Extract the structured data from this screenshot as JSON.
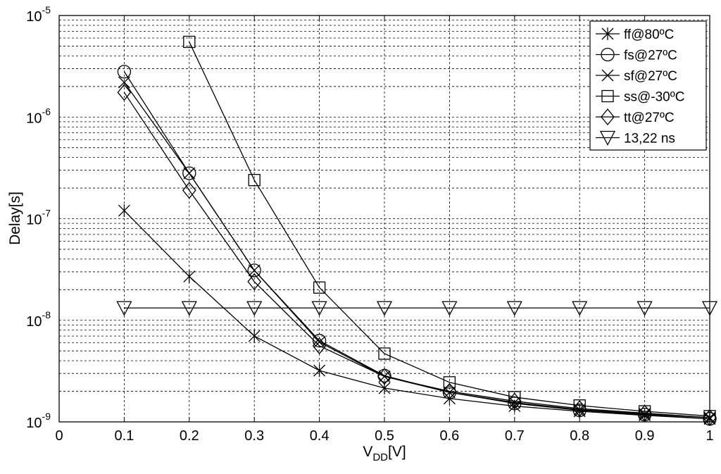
{
  "chart_data": {
    "type": "line",
    "title": "",
    "xlabel_main": "V",
    "xlabel_sub": "DD",
    "xlabel_unit": "[V]",
    "ylabel": "Delay[s]",
    "xlim": [
      0,
      1
    ],
    "ylim": [
      1e-09,
      1e-05
    ],
    "yscale": "log",
    "grid": true,
    "legend_position": "top-right",
    "x_ticks": [
      "0",
      "0.1",
      "0.2",
      "0.3",
      "0.4",
      "0.5",
      "0.6",
      "0.7",
      "0.8",
      "0.9",
      "1"
    ],
    "y_ticks": [
      {
        "base": "10",
        "exp": "-9"
      },
      {
        "base": "10",
        "exp": "-8"
      },
      {
        "base": "10",
        "exp": "-7"
      },
      {
        "base": "10",
        "exp": "-6"
      },
      {
        "base": "10",
        "exp": "-5"
      }
    ],
    "series": [
      {
        "name": "ff@80ºC",
        "marker": "asterisk",
        "x": [
          0.1,
          0.2,
          0.3,
          0.4,
          0.5,
          0.6,
          0.7,
          0.8,
          0.9,
          1.0
        ],
        "y": [
          1.2e-07,
          2.7e-08,
          7e-09,
          3.2e-09,
          2.15e-09,
          1.7e-09,
          1.43e-09,
          1.27e-09,
          1.16e-09,
          1.07e-09
        ]
      },
      {
        "name": "fs@27ºC",
        "marker": "circle",
        "x": [
          0.1,
          0.2,
          0.3,
          0.4,
          0.5,
          0.6,
          0.7,
          0.8,
          0.9,
          1.0
        ],
        "y": [
          2.8e-06,
          2.8e-07,
          3.1e-08,
          6.3e-09,
          2.85e-09,
          1.95e-09,
          1.52e-09,
          1.3e-09,
          1.18e-09,
          1.07e-09
        ]
      },
      {
        "name": "sf@27ºC",
        "marker": "x",
        "x": [
          0.1,
          0.2,
          0.3,
          0.4,
          0.5,
          0.6,
          0.7,
          0.8,
          0.9,
          1.0
        ],
        "y": [
          2.2e-06,
          2.8e-07,
          3.1e-08,
          6.1e-09,
          2.8e-09,
          1.95e-09,
          1.55e-09,
          1.32e-09,
          1.2e-09,
          1.1e-09
        ]
      },
      {
        "name": "ss@-30ºC",
        "marker": "square",
        "x": [
          0.2,
          0.3,
          0.4,
          0.5,
          0.6,
          0.7,
          0.8,
          0.9,
          1.0
        ],
        "y": [
          5.5e-06,
          2.4e-07,
          2.1e-08,
          4.7e-09,
          2.45e-09,
          1.75e-09,
          1.45e-09,
          1.27e-09,
          1.14e-09
        ]
      },
      {
        "name": "tt@27ºC",
        "marker": "diamond",
        "x": [
          0.1,
          0.2,
          0.3,
          0.4,
          0.5,
          0.6,
          0.7,
          0.8,
          0.9,
          1.0
        ],
        "y": [
          1.75e-06,
          1.9e-07,
          2.4e-08,
          5.6e-09,
          2.8e-09,
          2e-09,
          1.6e-09,
          1.35e-09,
          1.22e-09,
          1.1e-09
        ]
      },
      {
        "name": "13,22 ns",
        "marker": "triangle-down",
        "x": [
          0.1,
          0.2,
          0.3,
          0.4,
          0.5,
          0.6,
          0.7,
          0.8,
          0.9,
          1.0
        ],
        "y": [
          1.322e-08,
          1.322e-08,
          1.322e-08,
          1.322e-08,
          1.322e-08,
          1.322e-08,
          1.322e-08,
          1.322e-08,
          1.322e-08,
          1.322e-08
        ]
      }
    ]
  }
}
